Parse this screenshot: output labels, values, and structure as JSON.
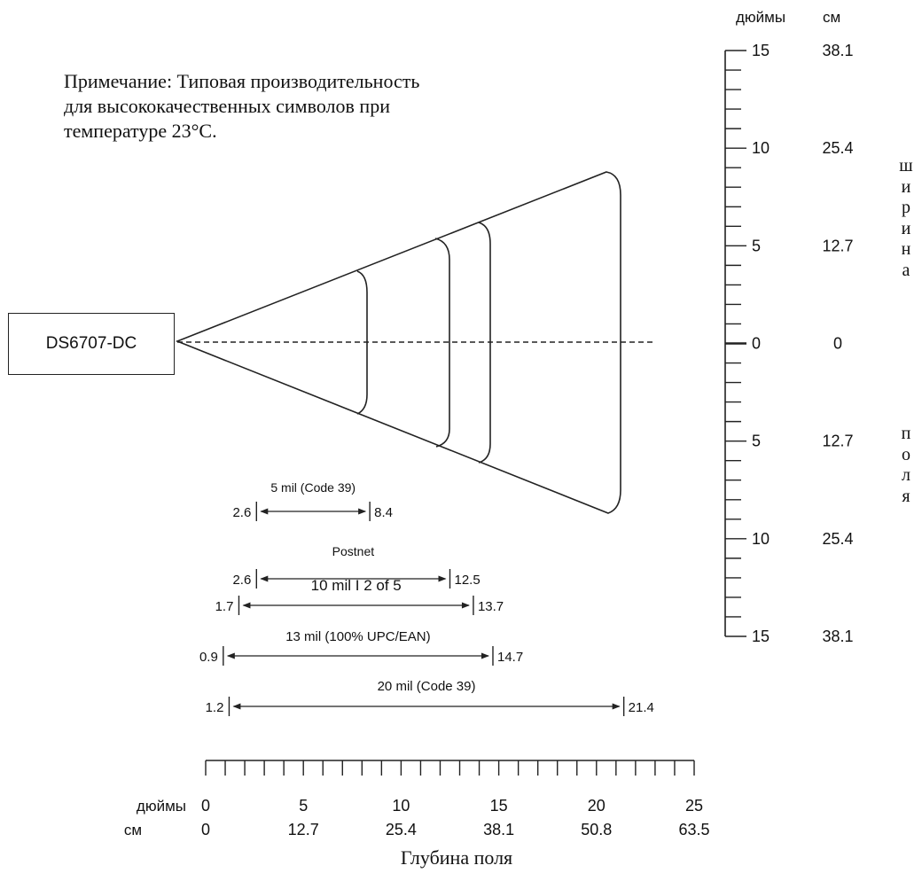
{
  "note": {
    "lines": [
      "Примечание: Типовая производительность",
      "для высококачественных символов при",
      "температуре 23°C."
    ]
  },
  "device": {
    "label": "DS6707-DC"
  },
  "width_scale": {
    "unit_inches": "дюймы",
    "unit_cm": "см",
    "title_top": "ширина",
    "title_bottom": "поля",
    "ticks": [
      {
        "inches": "15",
        "cm": "38.1"
      },
      {
        "inches": "10",
        "cm": "25.4"
      },
      {
        "inches": "5",
        "cm": "12.7"
      },
      {
        "inches": "0",
        "cm": "0"
      },
      {
        "inches": "5",
        "cm": "12.7"
      },
      {
        "inches": "10",
        "cm": "25.4"
      },
      {
        "inches": "15",
        "cm": "38.1"
      }
    ]
  },
  "depth_scale": {
    "unit_inches": "дюймы",
    "unit_cm": "см",
    "title": "Глубина поля",
    "ticks": [
      {
        "inches": "0",
        "cm": "0"
      },
      {
        "inches": "5",
        "cm": "12.7"
      },
      {
        "inches": "10",
        "cm": "25.4"
      },
      {
        "inches": "15",
        "cm": "38.1"
      },
      {
        "inches": "20",
        "cm": "50.8"
      },
      {
        "inches": "25",
        "cm": "63.5"
      }
    ]
  },
  "ranges": [
    {
      "label": "5 mil (Code 39)",
      "near": 2.6,
      "far": 8.4
    },
    {
      "label": "Postnet",
      "near": 2.6,
      "far": 12.5
    },
    {
      "label": "10 mil I 2 of 5",
      "near": 1.7,
      "far": 13.7
    },
    {
      "label": "13 mil (100% UPC/EAN)",
      "near": 0.9,
      "far": 14.7
    },
    {
      "label": "20 mil (Code 39)",
      "near": 1.2,
      "far": 21.4
    }
  ]
}
